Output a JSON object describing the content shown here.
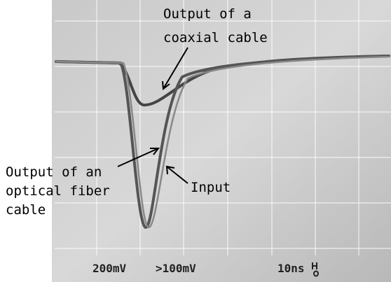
{
  "annotations": {
    "coaxial": [
      "Output of a",
      "coaxial cable"
    ],
    "fiber": [
      "Output of an",
      "optical fiber",
      "cable"
    ],
    "input": "Input"
  },
  "readout": {
    "ch1": "200mV",
    "ch2": ">100mV",
    "time": "10ns"
  }
}
